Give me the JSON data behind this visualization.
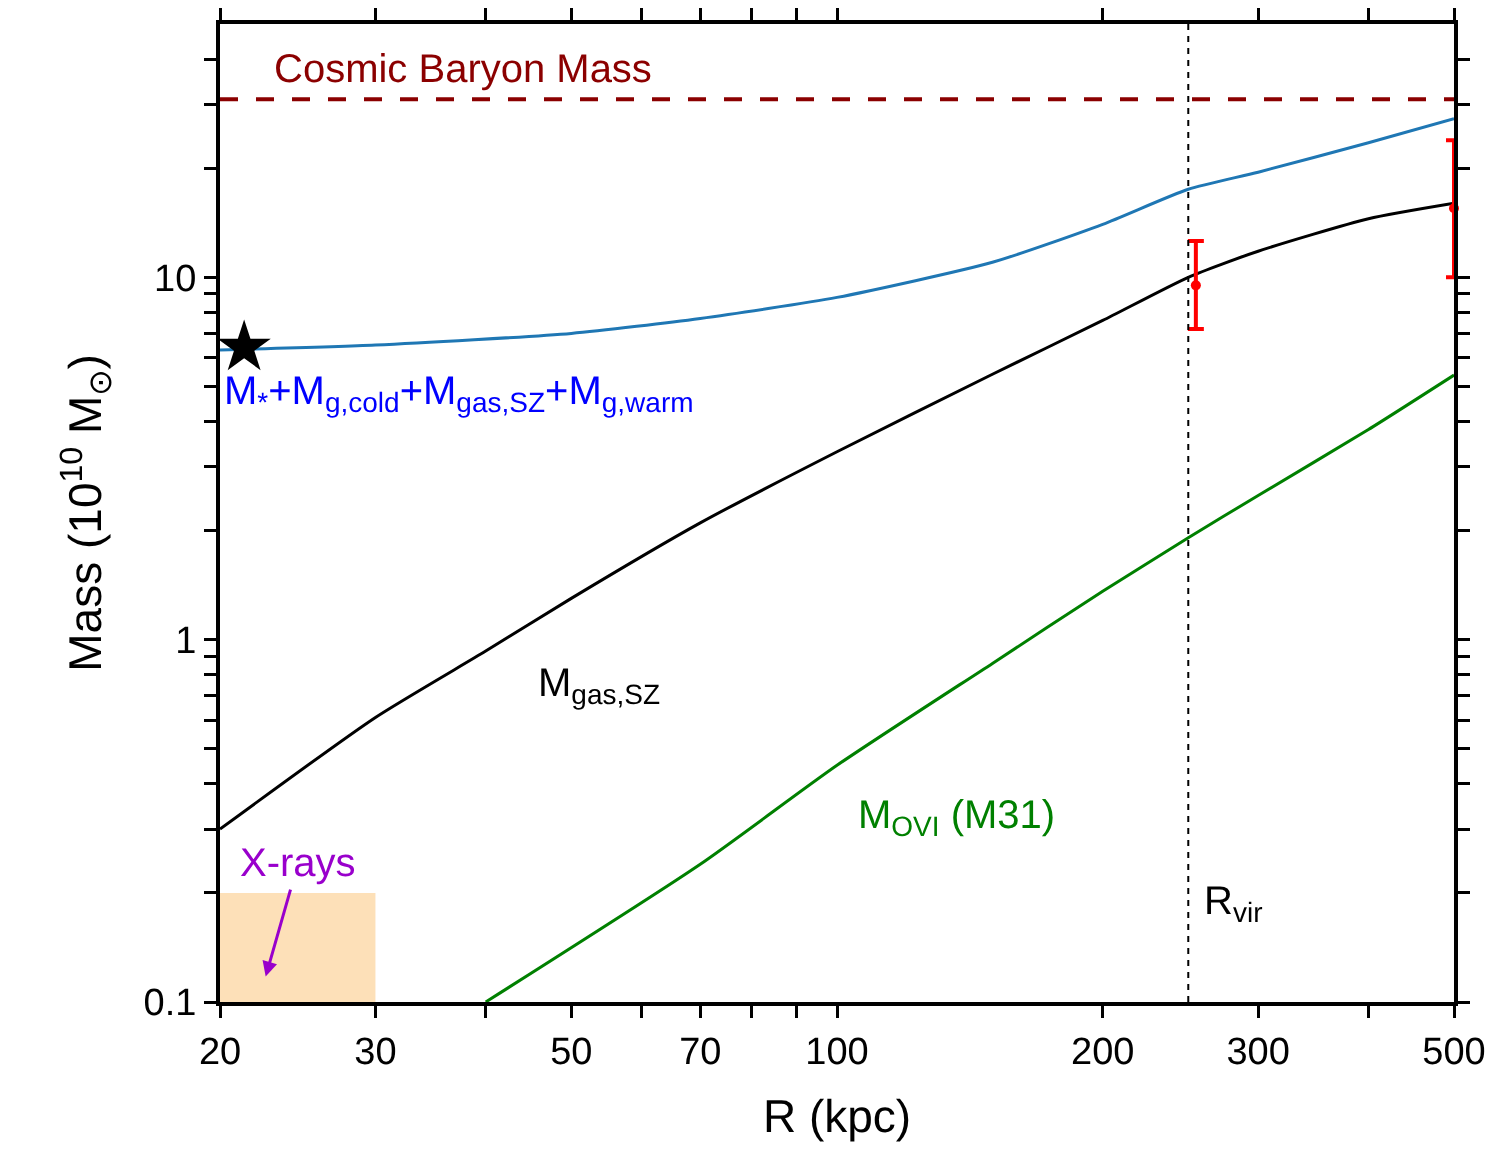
{
  "chart_data": {
    "type": "line",
    "xlabel": "R (kpc)",
    "ylabel": "Mass (10$^{10}$ M$_{⊙}$)",
    "log": "xy",
    "grid": false,
    "legend": false,
    "marker": "none",
    "line_style": "solid",
    "xlim": [
      20,
      500
    ],
    "xticks": [
      20,
      30,
      {
        "value": 40,
        "label": null
      },
      50,
      {
        "value": 60,
        "label": null
      },
      70,
      {
        "value": 80,
        "label": null
      },
      {
        "value": 90,
        "label": null
      },
      100,
      200,
      300,
      {
        "value": 400,
        "label": null
      },
      500
    ],
    "ylim": [
      0.1,
      50
    ],
    "yticks": [
      0.1,
      {
        "value": 0.2,
        "label": null
      },
      {
        "value": 0.3,
        "label": null
      },
      {
        "value": 0.4,
        "label": null
      },
      {
        "value": 0.5,
        "label": null
      },
      {
        "value": 0.6,
        "label": null
      },
      {
        "value": 0.7,
        "label": null
      },
      {
        "value": 0.8,
        "label": null
      },
      {
        "value": 0.9,
        "label": null
      },
      1,
      {
        "value": 2,
        "label": null
      },
      {
        "value": 3,
        "label": null
      },
      {
        "value": 4,
        "label": null
      },
      {
        "value": 5,
        "label": null
      },
      {
        "value": 6,
        "label": null
      },
      {
        "value": 7,
        "label": null
      },
      {
        "value": 8,
        "label": null
      },
      {
        "value": 9,
        "label": null
      },
      10,
      {
        "value": 20,
        "label": null
      },
      {
        "value": 30,
        "label": null
      },
      {
        "value": 40,
        "label": null
      }
    ],
    "series": [
      {
        "name": "M$_{*}$+M$_{g,cold}$+M$_{gas,SZ}$+M$_{g,warm}$",
        "color": "#1f77b4",
        "x": [
          20,
          30,
          50,
          70,
          100,
          150,
          200,
          250,
          300,
          400,
          500
        ],
        "values": [
          6.3,
          6.5,
          7.0,
          7.7,
          8.8,
          11,
          14,
          17.5,
          19.5,
          23.5,
          27.4
        ]
      },
      {
        "name": "M$_{gas,SZ}$",
        "color": "#000000",
        "x": [
          20,
          30,
          40,
          50,
          70,
          100,
          150,
          200,
          250,
          300,
          400,
          500
        ],
        "values": [
          0.3,
          0.61,
          0.93,
          1.3,
          2.1,
          3.3,
          5.4,
          7.6,
          10,
          11.8,
          14.5,
          16
        ]
      },
      {
        "name": "M$_{OVI}$ (M31)",
        "color": "#008000",
        "x": [
          40,
          70,
          100,
          150,
          200,
          250,
          300,
          400,
          500
        ],
        "values": [
          0.1,
          0.24,
          0.45,
          0.86,
          1.36,
          1.91,
          2.5,
          3.8,
          5.37
        ]
      },
      {
        "type": "area",
        "color": "#fde0b8",
        "x": [
          20,
          30
        ],
        "values": [
          0.2,
          0.2
        ]
      },
      {
        "type": "scatter",
        "color": "#ff0000",
        "marker": "circle",
        "x": [
          255,
          500
        ],
        "values": [
          9.5,
          15.5
        ],
        "errors": [
          [
            7.2,
            12.6
          ],
          [
            10,
            23.9
          ]
        ]
      },
      {
        "type": "scatter",
        "color": "#000000",
        "marker": "star",
        "x": [
          21.3
        ],
        "values": [
          6.4
        ]
      }
    ],
    "ref_lines": [
      {
        "axis": "y",
        "value": 31,
        "label": "Cosmic Baryon Mass",
        "color": "#8b0000",
        "line_style": "dashed"
      },
      {
        "axis": "x",
        "value": 250,
        "label": "R$_{vir}$",
        "color": "#000000",
        "line_style": "dotted"
      }
    ],
    "annotations": [
      "X-rays"
    ]
  }
}
